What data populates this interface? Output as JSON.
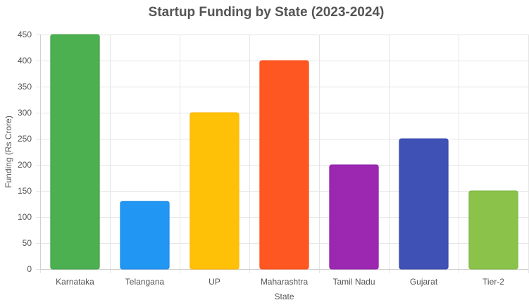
{
  "chart_data": {
    "type": "bar",
    "title": "Startup Funding by State (2023-2024)",
    "xlabel": "State",
    "ylabel": "Funding (Rs Crore)",
    "categories": [
      "Karnataka",
      "Telangana",
      "UP",
      "Maharashtra",
      "Tamil Nadu",
      "Gujarat",
      "Tier-2"
    ],
    "values": [
      450,
      130,
      300,
      400,
      200,
      250,
      150
    ],
    "colors": [
      "#4CAF50",
      "#2196F3",
      "#FFC107",
      "#FF5722",
      "#9C27B0",
      "#3F51B5",
      "#8BC34A"
    ],
    "border_colors": [
      "#43A047",
      "#1E88E5",
      "#FFB300",
      "#F4511E",
      "#8E24AA",
      "#3949AB",
      "#7CB342"
    ],
    "ylim": [
      0,
      450
    ],
    "yticks": [
      0,
      50,
      100,
      150,
      200,
      250,
      300,
      350,
      400,
      450
    ],
    "grid": true,
    "legend": "none"
  }
}
